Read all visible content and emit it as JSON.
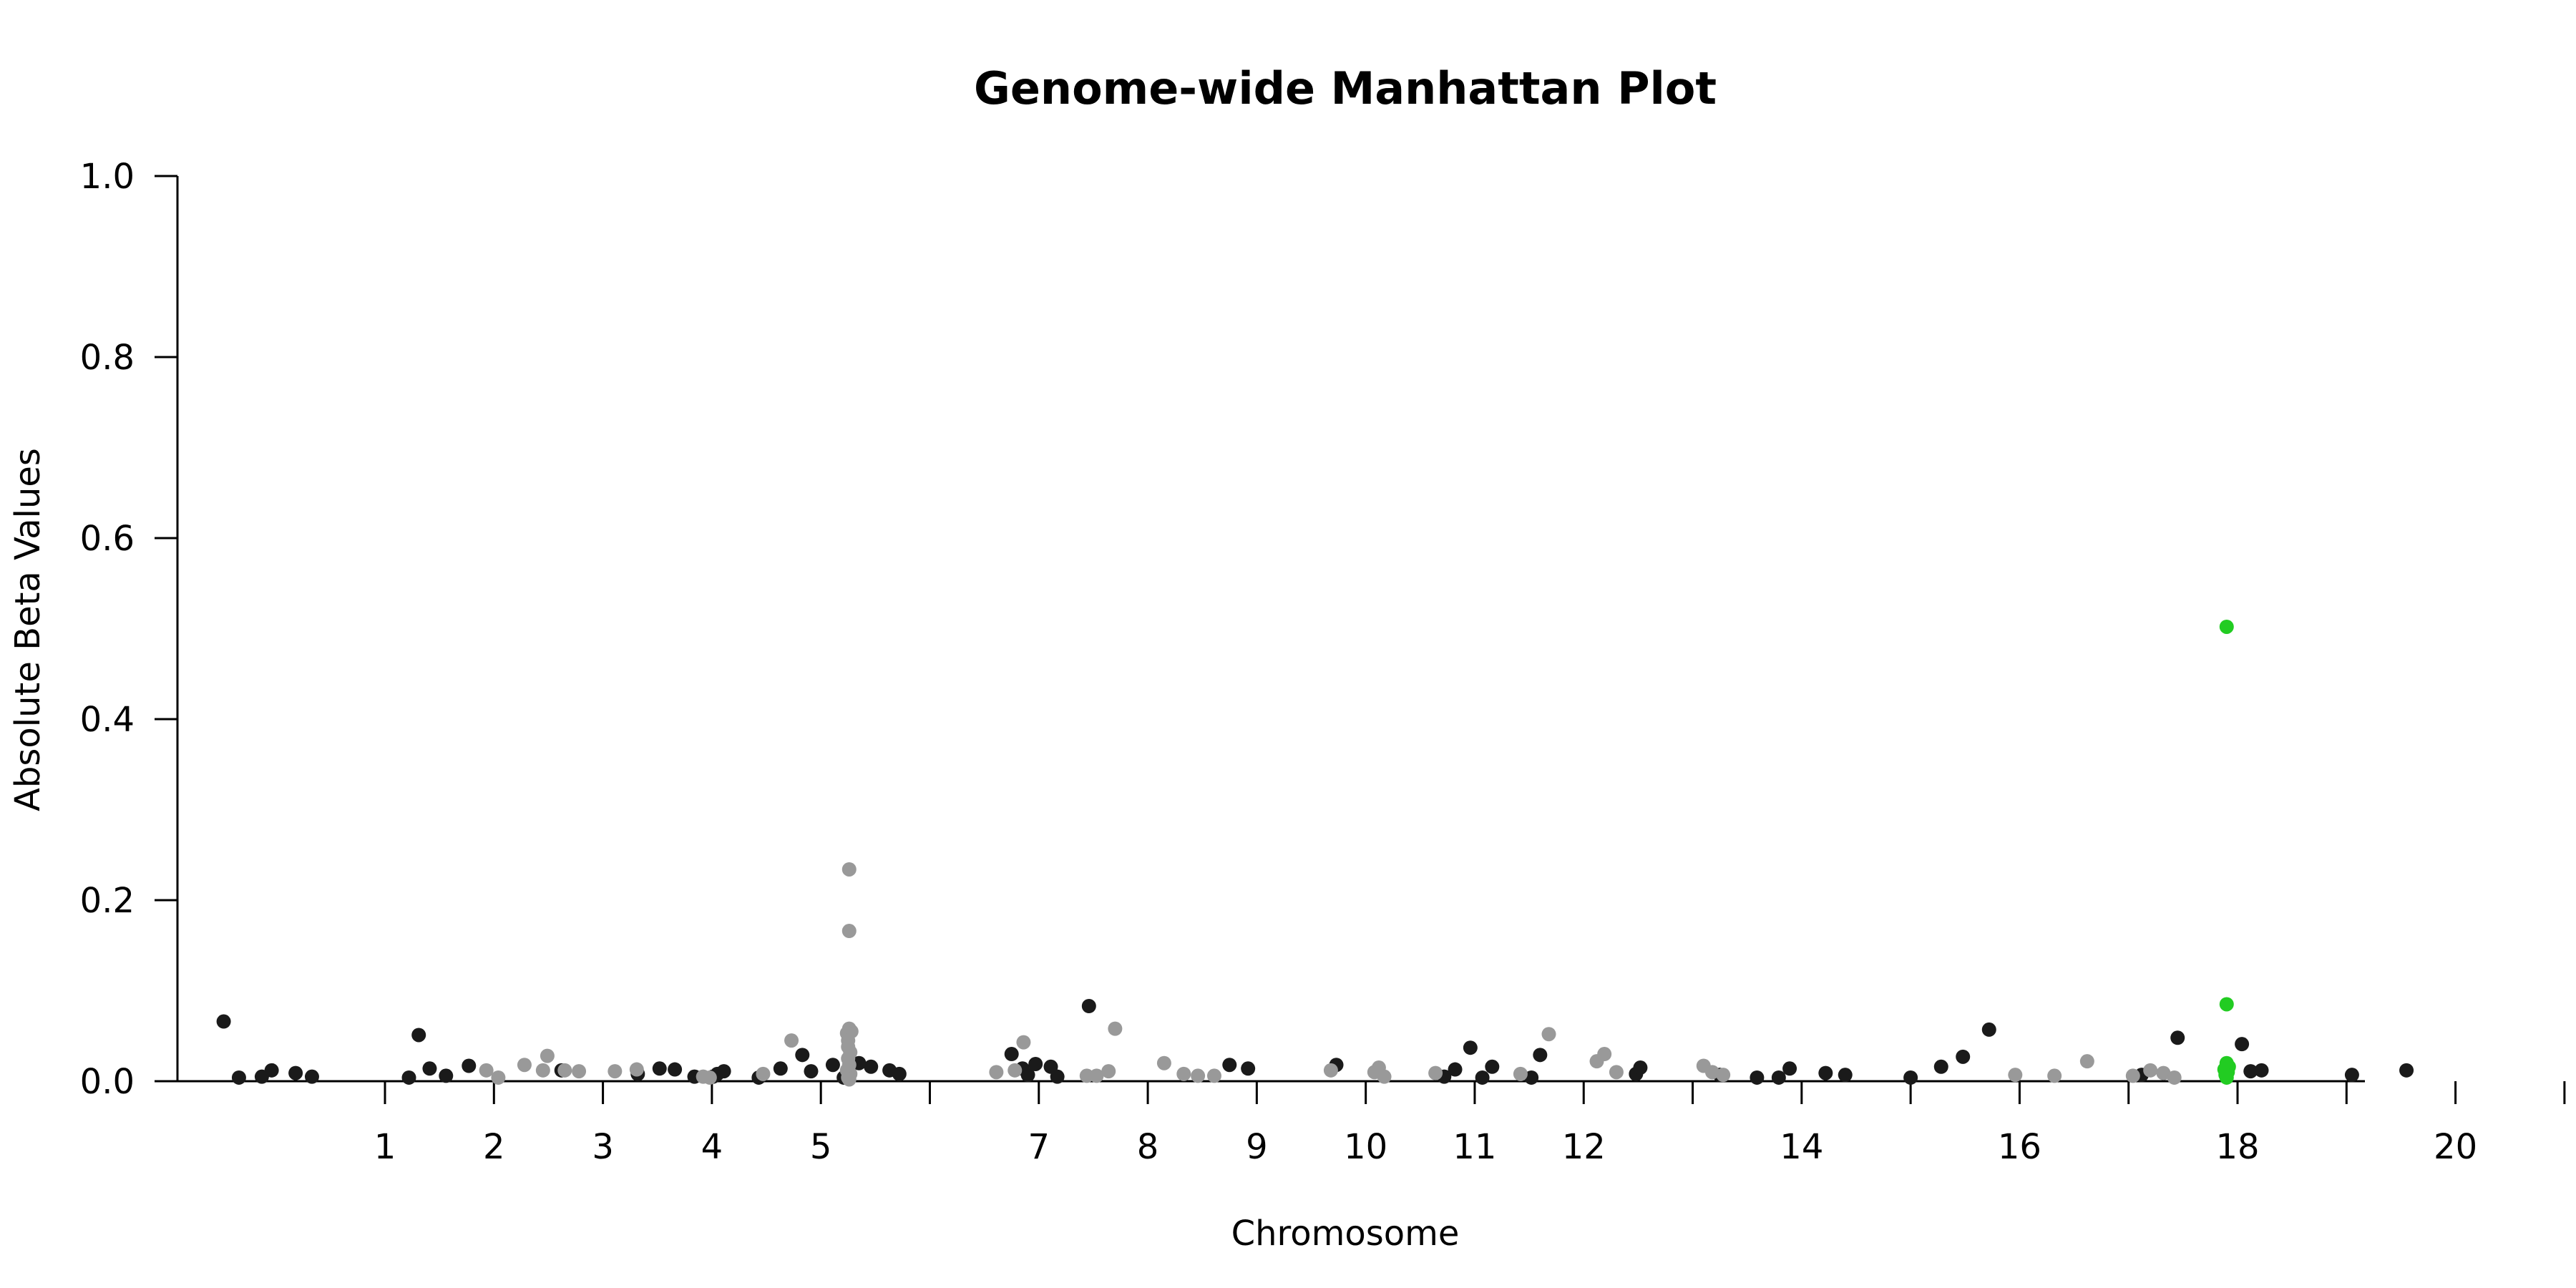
{
  "chart_data": {
    "type": "scatter",
    "title": "Genome-wide Manhattan Plot",
    "xlabel": "Chromosome",
    "ylabel": "Absolute Beta Values",
    "ylim": [
      0,
      1.0
    ],
    "yticks": [
      "0.0",
      "0.2",
      "0.4",
      "0.6",
      "0.8",
      "1.0"
    ],
    "grid": false,
    "colors": {
      "dark": "#1a1a1a",
      "light": "#999999",
      "highlight": "#22cc22"
    },
    "chromosome_ticks": [
      {
        "label": "1",
        "x": 1
      },
      {
        "label": "2",
        "x": 2
      },
      {
        "label": "3",
        "x": 3
      },
      {
        "label": "4",
        "x": 4
      },
      {
        "label": "5",
        "x": 5
      },
      {
        "label": "",
        "x": 6
      },
      {
        "label": "7",
        "x": 7
      },
      {
        "label": "8",
        "x": 8
      },
      {
        "label": "9",
        "x": 9
      },
      {
        "label": "10",
        "x": 10
      },
      {
        "label": "11",
        "x": 11
      },
      {
        "label": "12",
        "x": 12
      },
      {
        "label": "",
        "x": 13
      },
      {
        "label": "14",
        "x": 14
      },
      {
        "label": "",
        "x": 15
      },
      {
        "label": "16",
        "x": 16
      },
      {
        "label": "",
        "x": 17
      },
      {
        "label": "18",
        "x": 18
      },
      {
        "label": "",
        "x": 19
      },
      {
        "label": "20",
        "x": 20
      },
      {
        "label": "",
        "x": 21
      },
      {
        "label": "",
        "x": 22
      }
    ],
    "series": [
      {
        "color_key": "dark",
        "points": [
          [
            -0.48,
            0.066
          ],
          [
            -0.34,
            0.004
          ],
          [
            -0.13,
            0.005
          ],
          [
            -0.04,
            0.012
          ],
          [
            0.18,
            0.009
          ],
          [
            0.33,
            0.005
          ],
          [
            1.22,
            0.004
          ],
          [
            1.31,
            0.051
          ],
          [
            1.41,
            0.014
          ],
          [
            1.56,
            0.006
          ],
          [
            1.77,
            0.017
          ],
          [
            2.62,
            0.012
          ],
          [
            3.32,
            0.008
          ],
          [
            3.52,
            0.014
          ],
          [
            3.66,
            0.013
          ],
          [
            3.84,
            0.005
          ],
          [
            4.01,
            0.005
          ],
          [
            4.05,
            0.008
          ],
          [
            4.11,
            0.011
          ],
          [
            4.43,
            0.004
          ],
          [
            4.63,
            0.014
          ],
          [
            4.83,
            0.029
          ],
          [
            4.91,
            0.011
          ],
          [
            5.11,
            0.018
          ],
          [
            5.21,
            0.004
          ],
          [
            5.26,
            0.01
          ],
          [
            5.35,
            0.02
          ],
          [
            5.46,
            0.016
          ],
          [
            5.63,
            0.012
          ],
          [
            5.72,
            0.008
          ],
          [
            6.75,
            0.03
          ],
          [
            6.85,
            0.014
          ],
          [
            6.9,
            0.007
          ],
          [
            6.97,
            0.019
          ],
          [
            7.11,
            0.016
          ],
          [
            7.17,
            0.005
          ],
          [
            7.46,
            0.083
          ],
          [
            8.75,
            0.018
          ],
          [
            8.92,
            0.014
          ],
          [
            9.73,
            0.018
          ],
          [
            10.72,
            0.005
          ],
          [
            10.82,
            0.013
          ],
          [
            10.96,
            0.037
          ],
          [
            11.07,
            0.004
          ],
          [
            11.16,
            0.016
          ],
          [
            11.52,
            0.004
          ],
          [
            11.6,
            0.029
          ],
          [
            12.48,
            0.008
          ],
          [
            12.52,
            0.015
          ],
          [
            13.25,
            0.007
          ],
          [
            13.59,
            0.004
          ],
          [
            13.79,
            0.004
          ],
          [
            13.89,
            0.014
          ],
          [
            14.22,
            0.009
          ],
          [
            14.4,
            0.007
          ],
          [
            15.0,
            0.004
          ],
          [
            15.28,
            0.016
          ],
          [
            15.48,
            0.027
          ],
          [
            15.72,
            0.057
          ],
          [
            17.12,
            0.007
          ],
          [
            17.45,
            0.048
          ],
          [
            18.04,
            0.041
          ],
          [
            18.12,
            0.011
          ],
          [
            18.22,
            0.012
          ],
          [
            19.05,
            0.007
          ],
          [
            19.55,
            0.012
          ]
        ]
      },
      {
        "color_key": "light",
        "points": [
          [
            1.93,
            0.012
          ],
          [
            2.04,
            0.004
          ],
          [
            2.28,
            0.018
          ],
          [
            2.49,
            0.028
          ],
          [
            2.45,
            0.012
          ],
          [
            2.65,
            0.012
          ],
          [
            2.78,
            0.011
          ],
          [
            3.11,
            0.011
          ],
          [
            3.31,
            0.013
          ],
          [
            3.92,
            0.005
          ],
          [
            3.98,
            0.004
          ],
          [
            4.47,
            0.008
          ],
          [
            4.73,
            0.045
          ],
          [
            5.26,
            0.234
          ],
          [
            5.26,
            0.166
          ],
          [
            5.26,
            0.058
          ],
          [
            5.28,
            0.055
          ],
          [
            5.24,
            0.053
          ],
          [
            5.25,
            0.045
          ],
          [
            5.25,
            0.038
          ],
          [
            5.27,
            0.032
          ],
          [
            5.25,
            0.025
          ],
          [
            5.26,
            0.018
          ],
          [
            5.24,
            0.012
          ],
          [
            5.27,
            0.008
          ],
          [
            5.25,
            0.004
          ],
          [
            5.26,
            0.002
          ],
          [
            6.61,
            0.01
          ],
          [
            6.78,
            0.012
          ],
          [
            6.86,
            0.043
          ],
          [
            7.44,
            0.006
          ],
          [
            7.53,
            0.006
          ],
          [
            7.64,
            0.011
          ],
          [
            7.7,
            0.058
          ],
          [
            8.15,
            0.02
          ],
          [
            8.33,
            0.008
          ],
          [
            8.46,
            0.006
          ],
          [
            8.61,
            0.006
          ],
          [
            9.68,
            0.012
          ],
          [
            10.08,
            0.01
          ],
          [
            10.12,
            0.015
          ],
          [
            10.17,
            0.005
          ],
          [
            10.64,
            0.009
          ],
          [
            11.42,
            0.008
          ],
          [
            11.68,
            0.052
          ],
          [
            12.12,
            0.022
          ],
          [
            12.19,
            0.03
          ],
          [
            12.3,
            0.01
          ],
          [
            13.1,
            0.017
          ],
          [
            13.18,
            0.01
          ],
          [
            13.28,
            0.007
          ],
          [
            15.96,
            0.007
          ],
          [
            16.32,
            0.006
          ],
          [
            16.62,
            0.022
          ],
          [
            17.04,
            0.006
          ],
          [
            17.2,
            0.012
          ],
          [
            17.32,
            0.009
          ],
          [
            17.42,
            0.004
          ]
        ]
      },
      {
        "color_key": "highlight",
        "points": [
          [
            17.9,
            0.502
          ],
          [
            17.9,
            0.085
          ],
          [
            17.9,
            0.02
          ],
          [
            17.92,
            0.016
          ],
          [
            17.88,
            0.013
          ],
          [
            17.91,
            0.01
          ],
          [
            17.89,
            0.007
          ],
          [
            17.9,
            0.004
          ]
        ]
      }
    ]
  }
}
